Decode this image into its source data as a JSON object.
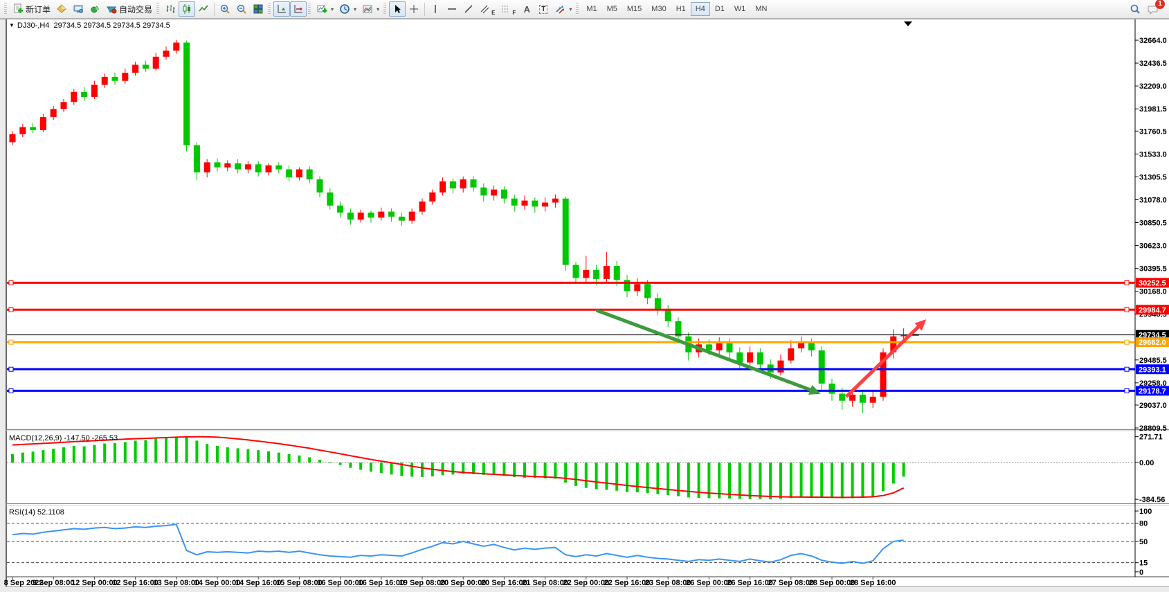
{
  "toolbar": {
    "new_order_label": "新订单",
    "auto_trading_label": "自动交易",
    "timeframes": [
      "M1",
      "M5",
      "M15",
      "M30",
      "H1",
      "H4",
      "D1",
      "W1",
      "MN"
    ],
    "active_timeframe": "H4",
    "notification_count": "1",
    "marker_labels": {
      "channel": "E",
      "fibo": "F",
      "text": "A",
      "label": "T"
    }
  },
  "chart_header": {
    "symbol_period": "DJ30-,H4",
    "ohlc": "29734.5 29734.5 29734.5 29734.5"
  },
  "indicator_labels": {
    "macd": "MACD(12,26,9) -147.50 -265.53",
    "rsi": "RSI(14) 52.1108"
  },
  "price_axis": [
    {
      "v": 32664.0,
      "label": "32664.0"
    },
    {
      "v": 32436.5,
      "label": "32436.5"
    },
    {
      "v": 32209.0,
      "label": "32209.0"
    },
    {
      "v": 31981.5,
      "label": "31981.5"
    },
    {
      "v": 31760.5,
      "label": "31760.5"
    },
    {
      "v": 31533.0,
      "label": "31533.0"
    },
    {
      "v": 31305.5,
      "label": "31305.5"
    },
    {
      "v": 31078.0,
      "label": "31078.0"
    },
    {
      "v": 30850.5,
      "label": "30850.5"
    },
    {
      "v": 30623.0,
      "label": "30623.0"
    },
    {
      "v": 30395.5,
      "label": "30395.5"
    },
    {
      "v": 30168.0,
      "label": "30168.0"
    },
    {
      "v": 29940.5,
      "label": "29940.5"
    },
    {
      "v": 29485.5,
      "label": "29485.5"
    },
    {
      "v": 29258.0,
      "label": "29258.0"
    },
    {
      "v": 29037.0,
      "label": "29037.0"
    },
    {
      "v": 28809.5,
      "label": "28809.5"
    }
  ],
  "macd_axis": [
    {
      "v": 271.71,
      "label": "271.71"
    },
    {
      "v": 0,
      "label": "0.00"
    },
    {
      "v": -384.56,
      "label": "-384.56"
    }
  ],
  "rsi_axis": [
    {
      "v": 100,
      "label": "100"
    },
    {
      "v": 80,
      "label": "80"
    },
    {
      "v": 50,
      "label": "50"
    },
    {
      "v": 15,
      "label": "15"
    },
    {
      "v": 0,
      "label": "0"
    }
  ],
  "rsi_dashed_levels": [
    80,
    50,
    15
  ],
  "time_axis": [
    {
      "i": 0,
      "label": "8 Sep 2022"
    },
    {
      "i": 4,
      "label": "9 Sep 08:00"
    },
    {
      "i": 8,
      "label": "12 Sep 00:00"
    },
    {
      "i": 12,
      "label": "12 Sep 16:00"
    },
    {
      "i": 16,
      "label": "13 Sep 08:00"
    },
    {
      "i": 20,
      "label": "14 Sep 00:00"
    },
    {
      "i": 24,
      "label": "14 Sep 16:00"
    },
    {
      "i": 28,
      "label": "15 Sep 08:00"
    },
    {
      "i": 32,
      "label": "16 Sep 00:00"
    },
    {
      "i": 36,
      "label": "16 Sep 16:00"
    },
    {
      "i": 40,
      "label": "19 Sep 08:00"
    },
    {
      "i": 44,
      "label": "20 Sep 00:00"
    },
    {
      "i": 48,
      "label": "20 Sep 16:00"
    },
    {
      "i": 52,
      "label": "21 Sep 08:00"
    },
    {
      "i": 56,
      "label": "22 Sep 00:00"
    },
    {
      "i": 60,
      "label": "22 Sep 16:00"
    },
    {
      "i": 64,
      "label": "23 Sep 08:00"
    },
    {
      "i": 68,
      "label": "26 Sep 00:00"
    },
    {
      "i": 72,
      "label": "26 Sep 16:00"
    },
    {
      "i": 76,
      "label": "27 Sep 08:00"
    },
    {
      "i": 80,
      "label": "28 Sep 00:00"
    },
    {
      "i": 84,
      "label": "28 Sep 16:00"
    }
  ],
  "price_lines": [
    {
      "price": 30252.5,
      "label": "30252.5",
      "color": "#ff0000",
      "width": 3,
      "handles": true
    },
    {
      "price": 29984.7,
      "label": "29984.7",
      "color": "#ff0000",
      "width": 3,
      "handles": true
    },
    {
      "price": 29734.5,
      "label": "29734.5",
      "color": "#000000",
      "width": 1,
      "handles": false,
      "current": true
    },
    {
      "price": 29662.0,
      "label": "29662.0",
      "color": "#ffa500",
      "width": 3,
      "handles": true
    },
    {
      "price": 29393.1,
      "label": "29393.1",
      "color": "#0000ff",
      "width": 3,
      "handles": true
    },
    {
      "price": 29178.7,
      "label": "29178.7",
      "color": "#0000ff",
      "width": 3,
      "handles": true
    }
  ],
  "arrows": [
    {
      "from": {
        "index": 57,
        "price": 29980
      },
      "to": {
        "index": 78.9,
        "price": 29150
      },
      "color": "#3c9b3c"
    },
    {
      "from": {
        "index": 81.4,
        "price": 29120
      },
      "to": {
        "index": 89.2,
        "price": 29890
      },
      "color": "#ff4040"
    }
  ],
  "colors": {
    "up": "#ff0000",
    "down": "#00c800",
    "macd_histogram": "#00cc00",
    "macd_signal": "#ff0000",
    "rsi_line": "#3a94f5",
    "axis_text": "#000000",
    "chip_text": "#ffffff"
  },
  "chart_data": {
    "type": "candlestick",
    "symbol": "DJ30-",
    "timeframe": "H4",
    "note": "red = up, green = down (CN convention)",
    "candles": [
      [
        31650,
        31760,
        31620,
        31730
      ],
      [
        31730,
        31830,
        31700,
        31800
      ],
      [
        31800,
        31840,
        31740,
        31770
      ],
      [
        31770,
        31930,
        31750,
        31900
      ],
      [
        31900,
        32010,
        31870,
        31980
      ],
      [
        31980,
        32080,
        31950,
        32050
      ],
      [
        32050,
        32180,
        32020,
        32150
      ],
      [
        32150,
        32200,
        32060,
        32100
      ],
      [
        32100,
        32260,
        32080,
        32220
      ],
      [
        32220,
        32330,
        32190,
        32300
      ],
      [
        32300,
        32340,
        32220,
        32260
      ],
      [
        32260,
        32380,
        32230,
        32340
      ],
      [
        32340,
        32450,
        32310,
        32420
      ],
      [
        32420,
        32460,
        32350,
        32380
      ],
      [
        32380,
        32540,
        32360,
        32500
      ],
      [
        32500,
        32600,
        32470,
        32560
      ],
      [
        32560,
        32664,
        32530,
        32640
      ],
      [
        32640,
        32660,
        31560,
        31620
      ],
      [
        31620,
        31650,
        31270,
        31350
      ],
      [
        31350,
        31480,
        31300,
        31450
      ],
      [
        31450,
        31490,
        31360,
        31400
      ],
      [
        31400,
        31470,
        31360,
        31440
      ],
      [
        31440,
        31480,
        31340,
        31380
      ],
      [
        31380,
        31460,
        31340,
        31430
      ],
      [
        31430,
        31460,
        31310,
        31350
      ],
      [
        31350,
        31440,
        31320,
        31420
      ],
      [
        31420,
        31450,
        31340,
        31380
      ],
      [
        31380,
        31420,
        31260,
        31300
      ],
      [
        31300,
        31400,
        31270,
        31380
      ],
      [
        31380,
        31410,
        31240,
        31280
      ],
      [
        31280,
        31310,
        31100,
        31150
      ],
      [
        31150,
        31190,
        30980,
        31020
      ],
      [
        31020,
        31060,
        30900,
        30950
      ],
      [
        30950,
        30990,
        30830,
        30880
      ],
      [
        30880,
        30980,
        30850,
        30950
      ],
      [
        30950,
        30970,
        30850,
        30900
      ],
      [
        30900,
        31000,
        30870,
        30960
      ],
      [
        30960,
        30990,
        30860,
        30910
      ],
      [
        30910,
        30950,
        30820,
        30870
      ],
      [
        30870,
        30990,
        30840,
        30960
      ],
      [
        30960,
        31090,
        30930,
        31060
      ],
      [
        31060,
        31180,
        31030,
        31150
      ],
      [
        31150,
        31300,
        31120,
        31260
      ],
      [
        31260,
        31290,
        31140,
        31190
      ],
      [
        31190,
        31310,
        31150,
        31280
      ],
      [
        31280,
        31310,
        31160,
        31200
      ],
      [
        31200,
        31240,
        31060,
        31120
      ],
      [
        31120,
        31220,
        31070,
        31180
      ],
      [
        31180,
        31210,
        31040,
        31090
      ],
      [
        31090,
        31130,
        30960,
        31020
      ],
      [
        31020,
        31120,
        30980,
        31070
      ],
      [
        31070,
        31100,
        30950,
        31010
      ],
      [
        31010,
        31100,
        30960,
        31050
      ],
      [
        31050,
        31130,
        31000,
        31090
      ],
      [
        31090,
        31110,
        30370,
        30430
      ],
      [
        30430,
        30460,
        30240,
        30300
      ],
      [
        30300,
        30520,
        30260,
        30380
      ],
      [
        30380,
        30430,
        30230,
        30290
      ],
      [
        30290,
        30560,
        30260,
        30420
      ],
      [
        30420,
        30470,
        30220,
        30280
      ],
      [
        30280,
        30330,
        30110,
        30170
      ],
      [
        30170,
        30300,
        30120,
        30240
      ],
      [
        30240,
        30280,
        30040,
        30100
      ],
      [
        30100,
        30150,
        29930,
        29990
      ],
      [
        29990,
        30030,
        29810,
        29870
      ],
      [
        29870,
        29910,
        29650,
        29720
      ],
      [
        29720,
        29760,
        29480,
        29560
      ],
      [
        29560,
        29700,
        29510,
        29640
      ],
      [
        29640,
        29690,
        29530,
        29580
      ],
      [
        29580,
        29710,
        29540,
        29650
      ],
      [
        29650,
        29700,
        29500,
        29560
      ],
      [
        29560,
        29610,
        29400,
        29460
      ],
      [
        29460,
        29620,
        29420,
        29560
      ],
      [
        29560,
        29600,
        29380,
        29440
      ],
      [
        29440,
        29490,
        29300,
        29360
      ],
      [
        29360,
        29540,
        29330,
        29480
      ],
      [
        29480,
        29680,
        29450,
        29600
      ],
      [
        29600,
        29720,
        29560,
        29660
      ],
      [
        29660,
        29700,
        29520,
        29580
      ],
      [
        29580,
        29620,
        29190,
        29250
      ],
      [
        29250,
        29300,
        29080,
        29150
      ],
      [
        29150,
        29210,
        28990,
        29080
      ],
      [
        29080,
        29200,
        29020,
        29140
      ],
      [
        29140,
        29180,
        28960,
        29060
      ],
      [
        29060,
        29190,
        29010,
        29120
      ],
      [
        29120,
        29600,
        29080,
        29560
      ],
      [
        29560,
        29790,
        29500,
        29720
      ],
      [
        29720,
        29800,
        29660,
        29734.5
      ]
    ],
    "macd": {
      "params": "12,26,9",
      "current_main": -147.5,
      "current_signal": -265.53,
      "histogram": [
        90,
        105,
        115,
        130,
        145,
        160,
        175,
        170,
        185,
        200,
        205,
        215,
        230,
        235,
        250,
        262,
        271,
        272,
        230,
        195,
        175,
        160,
        150,
        140,
        130,
        118,
        105,
        88,
        75,
        55,
        30,
        5,
        -25,
        -55,
        -75,
        -95,
        -110,
        -125,
        -140,
        -148,
        -150,
        -145,
        -132,
        -125,
        -118,
        -120,
        -128,
        -130,
        -140,
        -152,
        -158,
        -162,
        -165,
        -168,
        -210,
        -245,
        -265,
        -278,
        -285,
        -295,
        -308,
        -312,
        -320,
        -330,
        -340,
        -352,
        -365,
        -370,
        -372,
        -374,
        -376,
        -380,
        -382,
        -384,
        -384.56,
        -380,
        -372,
        -365,
        -362,
        -368,
        -372,
        -374,
        -372,
        -368,
        -360,
        -300,
        -220,
        -147.5
      ],
      "signal": [
        185,
        190,
        196,
        201,
        207,
        213,
        219,
        224,
        229,
        235,
        240,
        245,
        250,
        254,
        258,
        262,
        266,
        269,
        271,
        270,
        266,
        258,
        248,
        237,
        225,
        212,
        198,
        183,
        167,
        150,
        131,
        112,
        92,
        72,
        52,
        33,
        15,
        -2,
        -20,
        -38,
        -55,
        -70,
        -83,
        -94,
        -103,
        -110,
        -117,
        -123,
        -129,
        -135,
        -141,
        -146,
        -151,
        -156,
        -165,
        -177,
        -190,
        -203,
        -215,
        -227,
        -239,
        -250,
        -261,
        -272,
        -282,
        -292,
        -302,
        -311,
        -319,
        -326,
        -333,
        -339,
        -345,
        -350,
        -355,
        -358,
        -360,
        -361,
        -362,
        -363,
        -364,
        -365,
        -364,
        -362,
        -358,
        -345,
        -318,
        -265.53
      ]
    },
    "rsi": {
      "period": 14,
      "current": 52.1108,
      "values": [
        61,
        63,
        62,
        65,
        67,
        69,
        71,
        70,
        72,
        73,
        71,
        72,
        74,
        73,
        75,
        76,
        78,
        35,
        28,
        33,
        32,
        33,
        32,
        31,
        34,
        33,
        34,
        32,
        34,
        31,
        28,
        26,
        25,
        24,
        27,
        26,
        28,
        27,
        26,
        31,
        37,
        42,
        48,
        46,
        50,
        46,
        42,
        45,
        40,
        36,
        39,
        37,
        39,
        40,
        28,
        25,
        28,
        26,
        30,
        27,
        24,
        27,
        24,
        22,
        21,
        19,
        17,
        20,
        19,
        21,
        19,
        17,
        21,
        18,
        16,
        20,
        27,
        30,
        26,
        19,
        16,
        14,
        17,
        14,
        18,
        38,
        50,
        52.11
      ]
    }
  }
}
